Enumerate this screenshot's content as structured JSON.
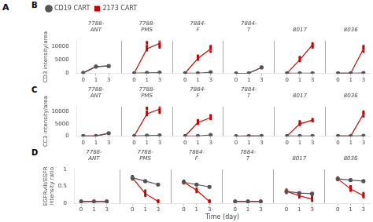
{
  "chart_data": [
    {
      "type": "blank",
      "title": "A"
    },
    {
      "type": "line",
      "title": "B",
      "categories": [
        "0",
        "1",
        "3",
        null,
        "0",
        "1",
        "3",
        null,
        "0",
        "1",
        "3",
        null,
        "0",
        "1",
        "3",
        null,
        "0",
        "1",
        "3",
        null,
        "0",
        "1",
        "3"
      ],
      "group_labels": [
        "7788-\nANT",
        "7788-\nPMS",
        "7884-\nF",
        "7884-\nT",
        "8017",
        "8036"
      ],
      "ylabel": "CD3 intensity/area",
      "ylim": [
        0,
        12000
      ],
      "yticks": [
        0,
        5000,
        10000
      ],
      "grid": false,
      "legend": "upper left",
      "series": [
        {
          "name": "CD19 CART",
          "color": "#555555",
          "marker": "circle",
          "values": [
            200,
            2500,
            2700,
            null,
            100,
            200,
            300,
            null,
            100,
            100,
            400,
            null,
            0,
            100,
            2200,
            null,
            50,
            100,
            100,
            null,
            50,
            50,
            150
          ],
          "errors": [
            50,
            200,
            200,
            null,
            20,
            30,
            50,
            null,
            20,
            20,
            50,
            null,
            10,
            20,
            200,
            null,
            10,
            20,
            20,
            null,
            10,
            10,
            30
          ]
        },
        {
          "name": "2173 CART",
          "color": "#cc0000",
          "marker": "square",
          "values": [
            200,
            2500,
            2700,
            null,
            100,
            9000,
            11000,
            null,
            100,
            5500,
            9000,
            null,
            0,
            100,
            2200,
            null,
            50,
            5000,
            10500,
            null,
            50,
            100,
            9000
          ],
          "points": [
            [
              200,
              200,
              200
            ],
            [
              2400,
              2500,
              2600,
              2700
            ],
            [
              2500,
              2700,
              2800,
              2900
            ],
            null,
            [
              90,
              100,
              110
            ],
            [
              8500,
              9000,
              9500,
              10000,
              11000,
              11500
            ],
            [
              9500,
              10000,
              10500,
              11000,
              12000
            ],
            null,
            [
              90,
              100,
              110
            ],
            [
              5000,
              5500,
              6000,
              6500
            ],
            [
              8000,
              9000,
              9500,
              10000
            ],
            null,
            [
              0,
              0,
              0
            ],
            [
              90,
              100,
              110
            ],
            [
              2000,
              2200,
              2300,
              2400
            ],
            null,
            [
              40,
              50,
              60
            ],
            [
              4500,
              5000,
              5500,
              6000
            ],
            [
              9500,
              10000,
              10500,
              11000
            ],
            null,
            [
              40,
              50,
              60
            ],
            [
              90,
              100,
              110
            ],
            [
              8000,
              9000,
              9500,
              10000
            ]
          ]
        }
      ]
    },
    {
      "type": "line",
      "title": "C",
      "categories": [
        "0",
        "1",
        "3",
        null,
        "0",
        "1",
        "3",
        null,
        "0",
        "1",
        "3",
        null,
        "0",
        "1",
        "3",
        null,
        "0",
        "1",
        "3",
        null,
        "0",
        "1",
        "3"
      ],
      "group_labels": [
        "7788-\nANT",
        "7788-\nPMS",
        "7884-\nF",
        "7884-\nT",
        "8017",
        "8036"
      ],
      "ylabel": "CC3 intensity/area",
      "ylim": [
        0,
        12000
      ],
      "yticks": [
        0,
        5000,
        10000
      ],
      "grid": false,
      "series": [
        {
          "color": "#555555",
          "marker": "circle",
          "values": [
            100,
            100,
            1200,
            null,
            100,
            200,
            300,
            null,
            100,
            100,
            500,
            null,
            0,
            100,
            100,
            null,
            50,
            100,
            100,
            null,
            50,
            50,
            150
          ],
          "errors": [
            20,
            20,
            100,
            null,
            20,
            30,
            50,
            null,
            20,
            20,
            50,
            null,
            10,
            20,
            20,
            null,
            10,
            20,
            20,
            null,
            10,
            10,
            30
          ]
        },
        {
          "color": "#cc0000",
          "marker": "square",
          "values": [
            100,
            100,
            1200,
            null,
            100,
            9000,
            11000,
            null,
            100,
            5500,
            7500,
            null,
            0,
            100,
            100,
            null,
            50,
            5000,
            6500,
            null,
            50,
            100,
            9000
          ],
          "points": [
            [
              90,
              100,
              110
            ],
            [
              90,
              100,
              110
            ],
            [
              1100,
              1200,
              1300
            ],
            null,
            [
              90,
              100,
              110
            ],
            [
              8500,
              9000,
              9500,
              10000,
              11000,
              11500
            ],
            [
              9500,
              10000,
              10500,
              11000,
              12000
            ],
            null,
            [
              90,
              100,
              110
            ],
            [
              5000,
              5500,
              6000,
              6500
            ],
            [
              7000,
              7500,
              8000,
              8500
            ],
            null,
            [
              0,
              0,
              0
            ],
            [
              90,
              100,
              110
            ],
            [
              90,
              100,
              110
            ],
            null,
            [
              40,
              50,
              60
            ],
            [
              4500,
              5000,
              5500,
              6000
            ],
            [
              6000,
              6500,
              7000
            ],
            null,
            [
              40,
              50,
              60
            ],
            [
              90,
              100,
              110
            ],
            [
              8000,
              9000,
              9500,
              10000
            ]
          ]
        }
      ]
    },
    {
      "type": "line",
      "title": "D",
      "categories": [
        "0",
        "1",
        "3",
        null,
        "0",
        "1",
        "3",
        null,
        "0",
        "1",
        "3",
        null,
        "0",
        "1",
        "3",
        null,
        "0",
        "1",
        "3",
        null,
        "0",
        "1",
        "3"
      ],
      "group_labels": [
        "7788-\nANT",
        "7788-\nPMS",
        "7884-\nF",
        "7884-\nT",
        "8017",
        "8036"
      ],
      "ylabel": "EGFRvIII/EGFR\nintensity ratio",
      "xlabel": "Time (day)",
      "ylim": [
        0,
        1
      ],
      "yticks": [
        0,
        0.5,
        1
      ],
      "grid": false,
      "series": [
        {
          "color": "#555555",
          "marker": "circle",
          "values": [
            0.05,
            0.05,
            0.05,
            null,
            0.75,
            0.65,
            0.55,
            null,
            0.62,
            0.55,
            0.48,
            null,
            0.05,
            0.05,
            0.05,
            null,
            0.35,
            0.3,
            0.28,
            null,
            0.72,
            0.68,
            0.65
          ],
          "errors": [
            0.01,
            0.01,
            0.01,
            null,
            0.03,
            0.03,
            0.03,
            null,
            0.03,
            0.03,
            0.03,
            null,
            0.01,
            0.01,
            0.01,
            null,
            0.03,
            0.03,
            0.03,
            null,
            0.03,
            0.03,
            0.03
          ]
        },
        {
          "color": "#cc0000",
          "marker": "square",
          "values": [
            0.05,
            0.05,
            0.05,
            null,
            0.75,
            0.28,
            0.05,
            null,
            0.62,
            0.38,
            0.05,
            null,
            0.05,
            0.05,
            0.05,
            null,
            0.35,
            0.22,
            0.12,
            null,
            0.72,
            0.42,
            0.22
          ],
          "points": [
            [
              0.03,
              0.05,
              0.07
            ],
            [
              0.03,
              0.05,
              0.07
            ],
            [
              0.03,
              0.05,
              0.07
            ],
            null,
            [
              0.7,
              0.75,
              0.8
            ],
            [
              0.22,
              0.27,
              0.32,
              0.37
            ],
            [
              0.03,
              0.05,
              0.07,
              0.08
            ],
            null,
            [
              0.58,
              0.62,
              0.66
            ],
            [
              0.33,
              0.38,
              0.43
            ],
            [
              0.03,
              0.05,
              0.07,
              0.08
            ],
            null,
            [
              0.03,
              0.05,
              0.07
            ],
            [
              0.03,
              0.05,
              0.07
            ],
            [
              0.03,
              0.05,
              0.07
            ],
            null,
            [
              0.3,
              0.35,
              0.4
            ],
            [
              0.17,
              0.22,
              0.27,
              0.3
            ],
            [
              0.07,
              0.12,
              0.17,
              0.2
            ],
            null,
            [
              0.68,
              0.72,
              0.76
            ],
            [
              0.37,
              0.42,
              0.47,
              0.5
            ],
            [
              0.18,
              0.22,
              0.26,
              0.3
            ]
          ]
        }
      ]
    }
  ]
}
